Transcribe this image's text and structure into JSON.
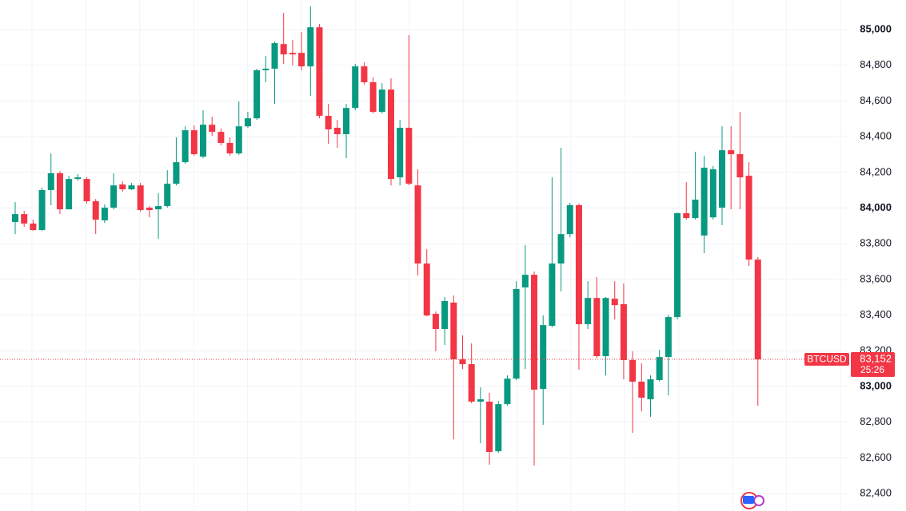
{
  "chart_data": {
    "type": "candlestick",
    "symbol": "BTCUSD",
    "last_price": {
      "value": 83152,
      "label": "83,152"
    },
    "countdown": "25:26",
    "up_color": "#089981",
    "down_color": "#f23645",
    "grid": true,
    "ylim": [
      82302,
      85166
    ],
    "yticks": [
      {
        "value": 82400,
        "label": "82,400"
      },
      {
        "value": 82600,
        "label": "82,600"
      },
      {
        "value": 82800,
        "label": "82,800"
      },
      {
        "value": 83000,
        "label": "83,000"
      },
      {
        "value": 83200,
        "label": "83,200"
      },
      {
        "value": 83400,
        "label": "83,400"
      },
      {
        "value": 83600,
        "label": "83,600"
      },
      {
        "value": 83800,
        "label": "83,800"
      },
      {
        "value": 84000,
        "label": "84,000"
      },
      {
        "value": 84200,
        "label": "84,200"
      },
      {
        "value": 84400,
        "label": "84,400"
      },
      {
        "value": 84600,
        "label": "84,600"
      },
      {
        "value": 84800,
        "label": "84,800"
      },
      {
        "value": 85000,
        "label": "85,000"
      }
    ],
    "open": [
      83922,
      83966,
      83913,
      83877,
      84101,
      84195,
      83993,
      84163,
      84163,
      84038,
      83931,
      84002,
      84132,
      84105,
      84127,
      84002,
      83993,
      84011,
      84136,
      84257,
      84436,
      84288,
      84467,
      84427,
      84365,
      84306,
      84458,
      84503,
      84772,
      84781,
      84919,
      84870,
      84870,
      84794,
      85013,
      84517,
      84450,
      84414,
      84561,
      84794,
      84705,
      84539,
      84664,
      84172,
      84450,
      84127,
      83689,
      83407,
      83322,
      83470,
      83152,
      83125,
      82915,
      82915,
      82637,
      82901,
      83044,
      83555,
      83626,
      82986,
      83340,
      83689,
      83854,
      84016,
      83349,
      83496,
      83170,
      83492,
      83461,
      83148,
      83027,
      82928,
      83036,
      83165,
      83389,
      83971,
      83944,
      83846,
      83948,
      84002,
      84324,
      84302,
      84181,
      83711
    ],
    "high": [
      84033,
      83984,
      83935,
      84114,
      84306,
      84208,
      84181,
      84190,
      84172,
      84051,
      84020,
      84195,
      84150,
      84141,
      84141,
      84011,
      84083,
      84212,
      84396,
      84458,
      84463,
      84548,
      84512,
      84445,
      84396,
      84597,
      84539,
      84781,
      84852,
      84933,
      85094,
      84941,
      84987,
      85130,
      85031,
      84584,
      84494,
      84584,
      84808,
      84816,
      84732,
      84700,
      84727,
      84494,
      84969,
      84217,
      83769,
      83420,
      83501,
      83510,
      83286,
      83241,
      82995,
      82964,
      82919,
      83062,
      83590,
      83792,
      83644,
      83398,
      84172,
      84338,
      84029,
      84025,
      83590,
      83613,
      83501,
      83590,
      83577,
      83197,
      83129,
      83062,
      83205,
      83402,
      83975,
      84145,
      84315,
      84293,
      84235,
      84458,
      84458,
      84539,
      84257,
      83725
    ],
    "low": [
      83854,
      83895,
      83872,
      83872,
      84016,
      83966,
      83993,
      84154,
      84025,
      83854,
      83917,
      83993,
      84092,
      84101,
      83980,
      83948,
      83828,
      84002,
      84127,
      84248,
      84293,
      84280,
      84405,
      84351,
      84293,
      84297,
      84450,
      84494,
      84705,
      84584,
      84808,
      84799,
      84772,
      84629,
      84503,
      84360,
      84338,
      84280,
      84548,
      84691,
      84530,
      84530,
      84127,
      84127,
      84127,
      83622,
      83393,
      83197,
      83232,
      82704,
      83098,
      82906,
      82682,
      82561,
      82628,
      82892,
      83036,
      83098,
      82557,
      82785,
      83331,
      83532,
      83836,
      83094,
      83322,
      83161,
      83062,
      83376,
      83040,
      82740,
      82861,
      82830,
      83027,
      82950,
      83376,
      83935,
      83935,
      83747,
      83935,
      83904,
      83993,
      83993,
      83675,
      82892
    ],
    "close": [
      83966,
      83913,
      83877,
      84101,
      84195,
      83993,
      84163,
      84172,
      84038,
      83935,
      84002,
      84127,
      84105,
      84127,
      83989,
      83989,
      84011,
      84136,
      84257,
      84436,
      84302,
      84467,
      84427,
      84365,
      84306,
      84458,
      84503,
      84772,
      84781,
      84924,
      84861,
      84861,
      84794,
      85013,
      84517,
      84441,
      84414,
      84561,
      84794,
      84705,
      84539,
      84664,
      84163,
      84450,
      84136,
      83689,
      83398,
      83322,
      83479,
      83152,
      83125,
      82915,
      82928,
      82633,
      82901,
      83044,
      83546,
      83626,
      82982,
      83344,
      83689,
      83854,
      84016,
      83349,
      83496,
      83170,
      83496,
      83456,
      83148,
      83027,
      82937,
      83040,
      83165,
      83389,
      83971,
      83944,
      84047,
      84226,
      84217,
      84324,
      84302,
      84172,
      83711,
      83152
    ]
  }
}
